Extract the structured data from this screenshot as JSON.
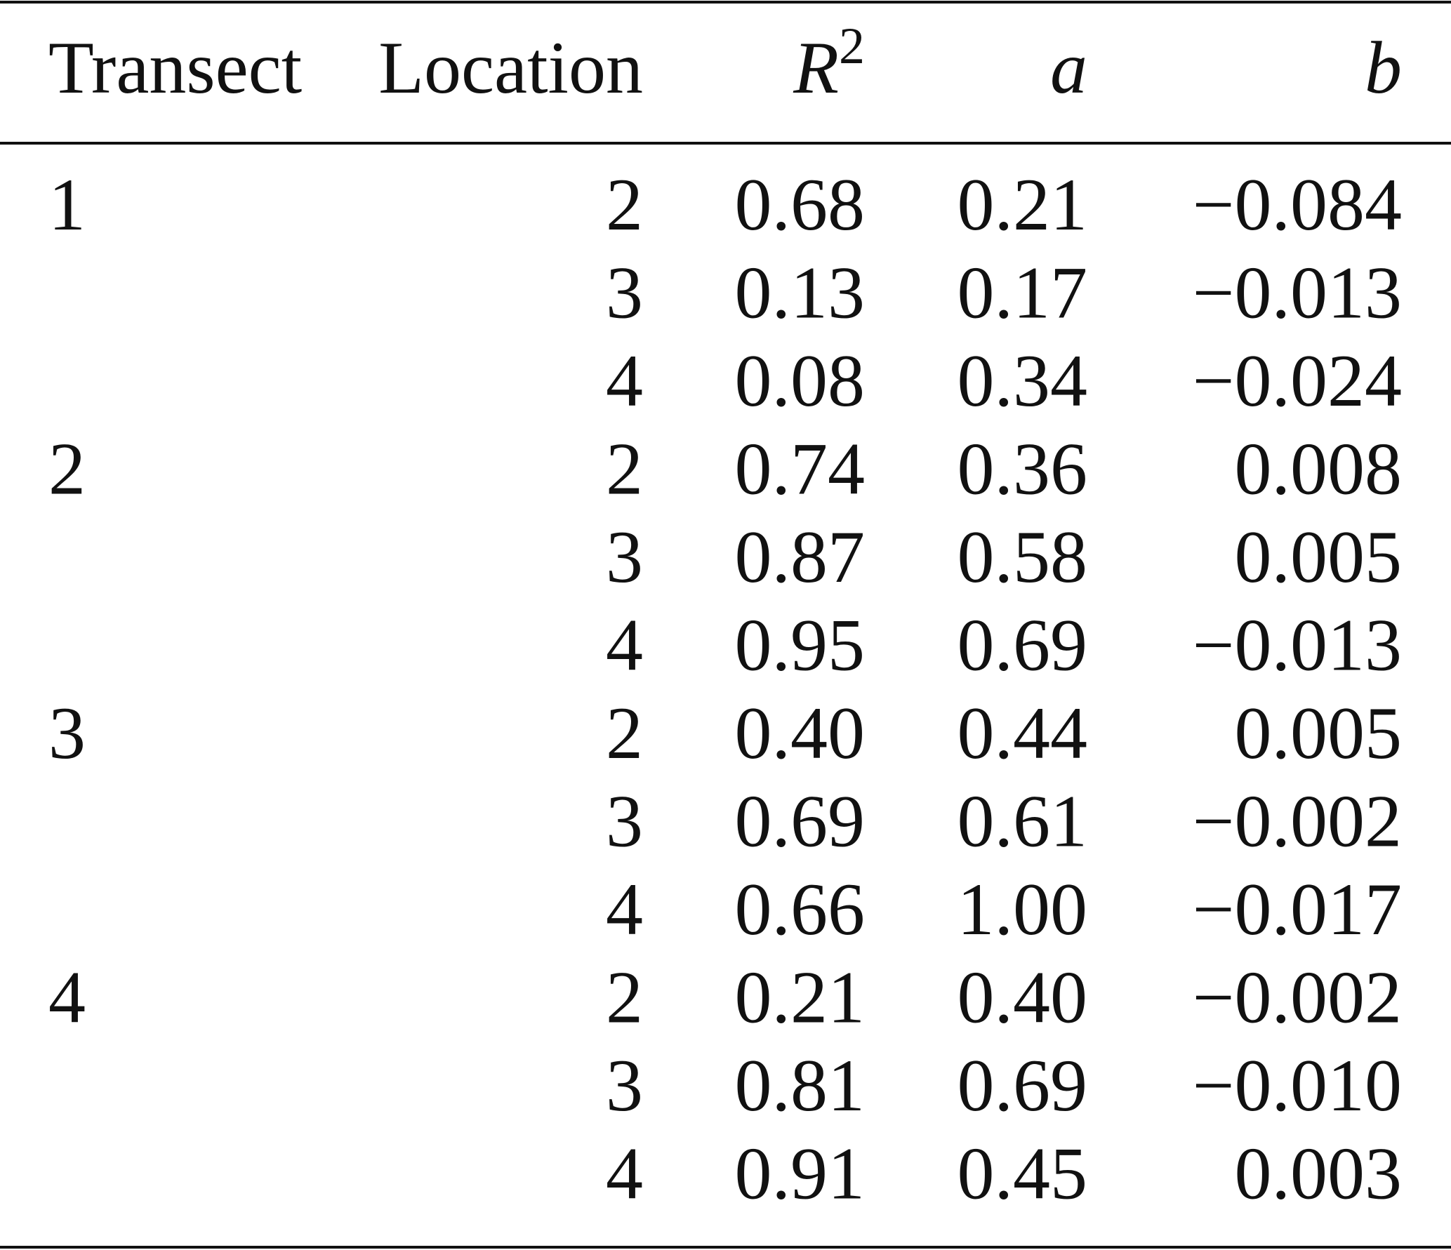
{
  "table": {
    "header": [
      "Transect",
      "Location",
      {
        "text": "R",
        "sup": "2"
      },
      "a",
      "b"
    ],
    "groups": [
      {
        "transect": "1",
        "rows": [
          [
            "2",
            "0.68",
            "0.21",
            "−0.084"
          ],
          [
            "3",
            "0.13",
            "0.17",
            "−0.013"
          ],
          [
            "4",
            "0.08",
            "0.34",
            "−0.024"
          ]
        ]
      },
      {
        "transect": "2",
        "rows": [
          [
            "2",
            "0.74",
            "0.36",
            "0.008"
          ],
          [
            "3",
            "0.87",
            "0.58",
            "0.005"
          ],
          [
            "4",
            "0.95",
            "0.69",
            "−0.013"
          ]
        ]
      },
      {
        "transect": "3",
        "rows": [
          [
            "2",
            "0.40",
            "0.44",
            "0.005"
          ],
          [
            "3",
            "0.69",
            "0.61",
            "−0.002"
          ],
          [
            "4",
            "0.66",
            "1.00",
            "−0.017"
          ]
        ]
      },
      {
        "transect": "4",
        "rows": [
          [
            "2",
            "0.21",
            "0.40",
            "−0.002"
          ],
          [
            "3",
            "0.81",
            "0.69",
            "−0.010"
          ],
          [
            "4",
            "0.91",
            "0.45",
            "0.003"
          ]
        ]
      }
    ]
  }
}
